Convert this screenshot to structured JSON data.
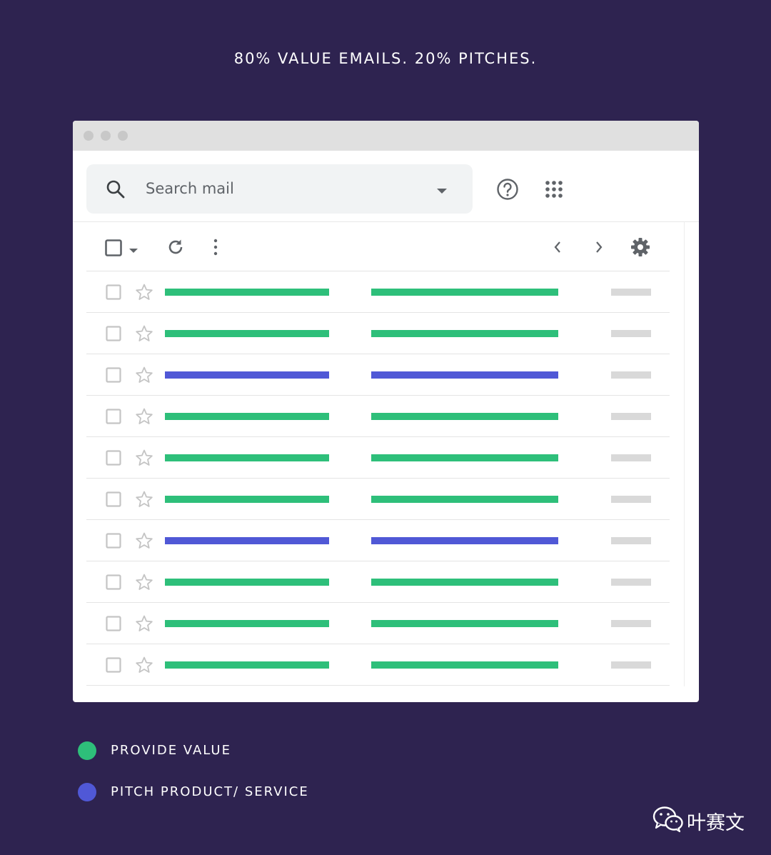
{
  "headline": "80% VALUE EMAILS. 20% PITCHES.",
  "search": {
    "placeholder": "Search mail"
  },
  "icons": {
    "search": "search-icon",
    "dropdown": "caret-down-icon",
    "help": "help-circle-icon",
    "apps": "apps-grid-icon",
    "refresh": "refresh-icon",
    "more": "more-vert-icon",
    "prev": "chevron-left-icon",
    "next": "chevron-right-icon",
    "settings": "gear-icon",
    "star": "star-outline-icon",
    "checkbox": "checkbox-icon"
  },
  "colors": {
    "background": "#2e2350",
    "value": "#2ebf7a",
    "pitch": "#5058d6",
    "date_placeholder": "#d9d9d9"
  },
  "emails": [
    {
      "type": "value"
    },
    {
      "type": "value"
    },
    {
      "type": "pitch"
    },
    {
      "type": "value"
    },
    {
      "type": "value"
    },
    {
      "type": "value"
    },
    {
      "type": "pitch"
    },
    {
      "type": "value"
    },
    {
      "type": "value"
    },
    {
      "type": "value"
    }
  ],
  "legend": [
    {
      "label": "PROVIDE VALUE",
      "color": "#2ebf7a"
    },
    {
      "label": "PITCH PRODUCT/ SERVICE",
      "color": "#5058d6"
    }
  ],
  "watermark": {
    "text": "叶赛文"
  }
}
